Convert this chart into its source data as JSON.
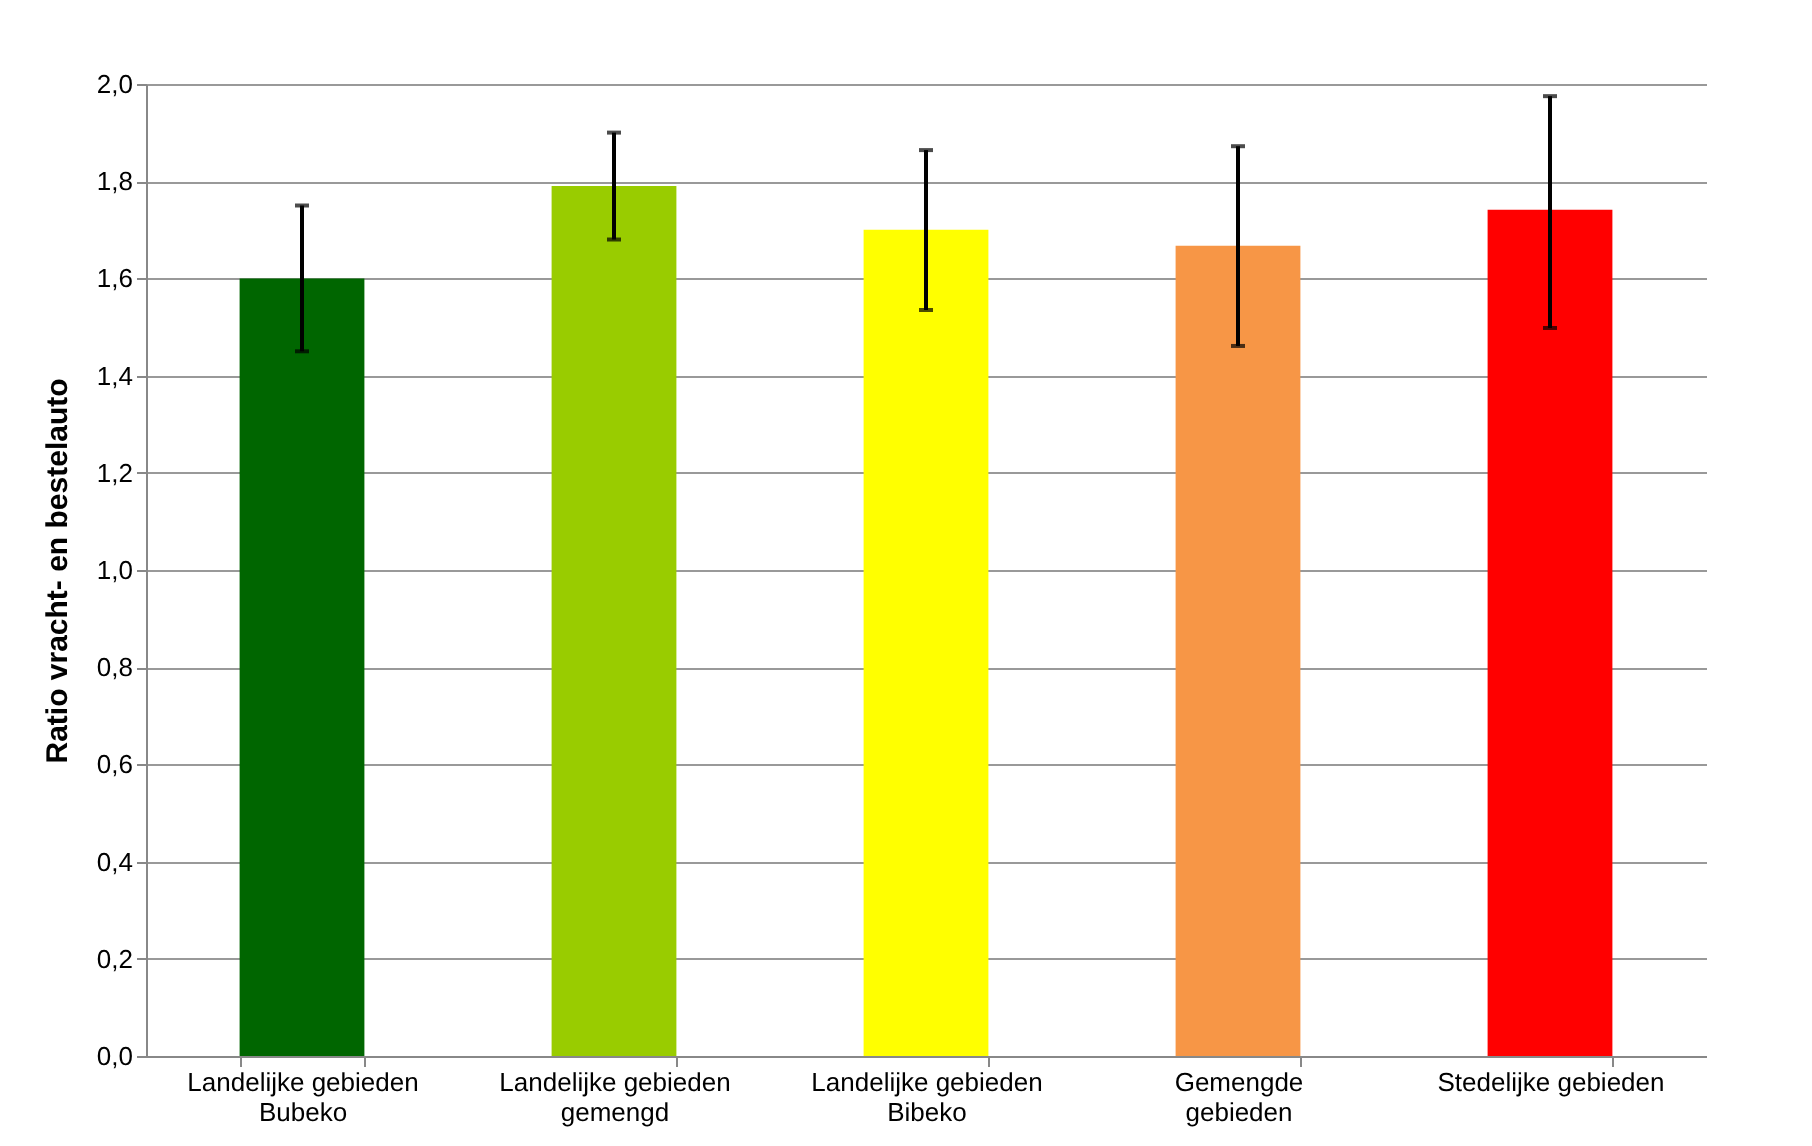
{
  "chart_data": {
    "type": "bar",
    "ylabel": "Ratio vracht- en bestelauto",
    "categories": [
      "Landelijke gebieden\nBubeko",
      "Landelijke gebieden\ngemengd",
      "Landelijke gebieden\nBibeko",
      "Gemengde\ngebieden",
      "Stedelijke gebieden"
    ],
    "values": [
      1.6,
      1.79,
      1.7,
      1.667,
      1.741
    ],
    "colors": [
      "#006600",
      "#99cc00",
      "#ffff00",
      "#f79646",
      "#ff0000"
    ],
    "errors": [
      [
        1.45,
        1.75
      ],
      [
        1.68,
        1.9
      ],
      [
        1.535,
        1.864
      ],
      [
        1.461,
        1.872
      ],
      [
        1.498,
        1.975
      ]
    ],
    "ylim": [
      0,
      2
    ],
    "yticks": [
      {
        "value": 0,
        "label": "0,0"
      },
      {
        "value": 0.2,
        "label": "0,2"
      },
      {
        "value": 0.4,
        "label": "0,4"
      },
      {
        "value": 0.6,
        "label": "0,6"
      },
      {
        "value": 0.8,
        "label": "0,8"
      },
      {
        "value": 1.0,
        "label": "1,0"
      },
      {
        "value": 1.2,
        "label": "1,2"
      },
      {
        "value": 1.4,
        "label": "1,4"
      },
      {
        "value": 1.6,
        "label": "1,6"
      },
      {
        "value": 1.8,
        "label": "1,8"
      },
      {
        "value": 2.0,
        "label": "2,0"
      }
    ],
    "grid": "y",
    "legend": false
  }
}
